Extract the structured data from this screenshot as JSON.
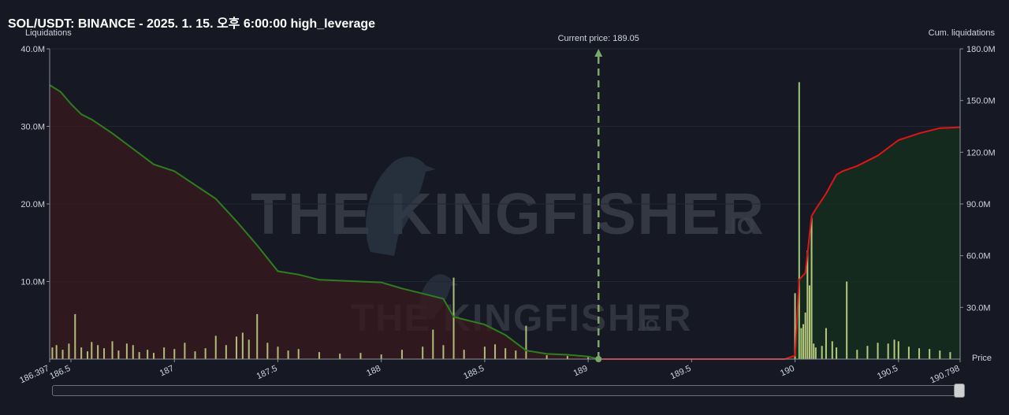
{
  "title": "SOL/USDT: BINANCE - 2025. 1. 15. 오후 6:00:00 high_leverage",
  "watermark": {
    "main": "THE KINGFISHER",
    "suffix": ".IO"
  },
  "chart_data": {
    "type": "bar",
    "x_range": [
      186.397,
      190.798
    ],
    "x_ticks": [
      "186.397",
      "186.5",
      "187",
      "187.5",
      "188",
      "188.5",
      "189",
      "189.5",
      "190",
      "190.5",
      "190.798"
    ],
    "x_tick_values": [
      186.397,
      186.5,
      187,
      187.5,
      188,
      188.5,
      189,
      189.5,
      190,
      190.5,
      190.798
    ],
    "xlabel": "Price",
    "ylabel_left": "Liquidations",
    "ylabel_right": "Cum. liquidations",
    "ylim_left": [
      0,
      40000000
    ],
    "ylim_right": [
      0,
      180000000
    ],
    "y_ticks_left": [
      "40.0M",
      "30.0M",
      "20.0M",
      "10.0M"
    ],
    "y_ticks_left_values": [
      40000000,
      30000000,
      20000000,
      10000000
    ],
    "y_ticks_right": [
      "180.0M",
      "150.0M",
      "120.0M",
      "90.0M",
      "60.0M",
      "30.0M"
    ],
    "y_ticks_right_values": [
      180000000,
      150000000,
      120000000,
      90000000,
      60000000,
      30000000
    ],
    "current_price": 189.05,
    "current_price_label": "Current price: 189.05",
    "colors": {
      "short_side": "#2e7d1e",
      "long_side": "#e01515",
      "bars": "#c9d98a",
      "tall_bar": "#a9e07e",
      "current_price": "#7aa86a"
    },
    "series": [
      {
        "side": "below",
        "x": [
          186.397,
          186.45,
          186.5,
          186.55,
          186.6,
          186.7,
          186.8,
          186.9,
          187.0,
          187.1,
          187.2,
          187.3,
          187.4,
          187.5,
          187.6,
          187.7,
          187.8,
          187.9,
          188.0,
          188.1,
          188.2,
          188.3,
          188.35,
          188.5,
          188.6,
          188.7,
          188.8,
          188.9,
          189.0,
          189.05
        ],
        "values": [
          159000000,
          155000000,
          148000000,
          142000000,
          139000000,
          131000000,
          122000000,
          113000000,
          109000000,
          101000000,
          93000000,
          80000000,
          66000000,
          51000000,
          49000000,
          46000000,
          45500000,
          45000000,
          44500000,
          41000000,
          38000000,
          35000000,
          24500000,
          20000000,
          14000000,
          5000000,
          3000000,
          2500000,
          1500000,
          0
        ]
      },
      {
        "side": "above",
        "x": [
          189.05,
          189.95,
          190.0,
          190.02,
          190.05,
          190.08,
          190.1,
          190.15,
          190.2,
          190.23,
          190.3,
          190.4,
          190.5,
          190.6,
          190.7,
          190.798
        ],
        "values": [
          0,
          0,
          2000000,
          46000000,
          50000000,
          83000000,
          87000000,
          96000000,
          107000000,
          109000000,
          112000000,
          118000000,
          127000000,
          131000000,
          134000000,
          134500000
        ]
      }
    ],
    "bars_below": {
      "x": [
        186.41,
        186.43,
        186.46,
        186.49,
        186.52,
        186.55,
        186.58,
        186.6,
        186.63,
        186.66,
        186.7,
        186.73,
        186.77,
        186.8,
        186.83,
        186.87,
        186.9,
        186.95,
        187.0,
        187.05,
        187.1,
        187.15,
        187.2,
        187.25,
        187.3,
        187.33,
        187.36,
        187.4,
        187.45,
        187.5,
        187.55,
        187.6,
        187.7,
        187.8,
        187.9,
        188.0,
        188.1,
        188.2,
        188.25,
        188.3,
        188.35,
        188.4,
        188.5,
        188.55,
        188.6,
        188.65,
        188.7,
        188.8,
        188.9,
        189.0
      ],
      "values": [
        1500000,
        1800000,
        1200000,
        2000000,
        5800000,
        1500000,
        1000000,
        2200000,
        1800000,
        1400000,
        2300000,
        1100000,
        2000000,
        1800000,
        900000,
        1200000,
        800000,
        1500000,
        1300000,
        2100000,
        1000000,
        1400000,
        3000000,
        1800000,
        2900000,
        3400000,
        2500000,
        5800000,
        2100000,
        1600000,
        1100000,
        1300000,
        900000,
        700000,
        800000,
        600000,
        1200000,
        1600000,
        3800000,
        1800000,
        10500000,
        1200000,
        1600000,
        1900000,
        1400000,
        1100000,
        4300000,
        500000,
        400000,
        300000
      ]
    },
    "bars_above": {
      "x": [
        190.0,
        190.02,
        190.03,
        190.04,
        190.05,
        190.06,
        190.07,
        190.08,
        190.09,
        190.1,
        190.13,
        190.15,
        190.18,
        190.2,
        190.25,
        190.3,
        190.35,
        190.4,
        190.45,
        190.48,
        190.5,
        190.55,
        190.6,
        190.65,
        190.7,
        190.75
      ],
      "values": [
        8500000,
        35700000,
        4000000,
        4500000,
        6000000,
        14000000,
        9500000,
        18300000,
        2000000,
        1500000,
        1700000,
        4000000,
        2300000,
        1500000,
        10000000,
        1200000,
        1700000,
        2100000,
        2000000,
        2500000,
        2300000,
        1600000,
        1400000,
        1300000,
        1100000,
        900000
      ]
    }
  }
}
